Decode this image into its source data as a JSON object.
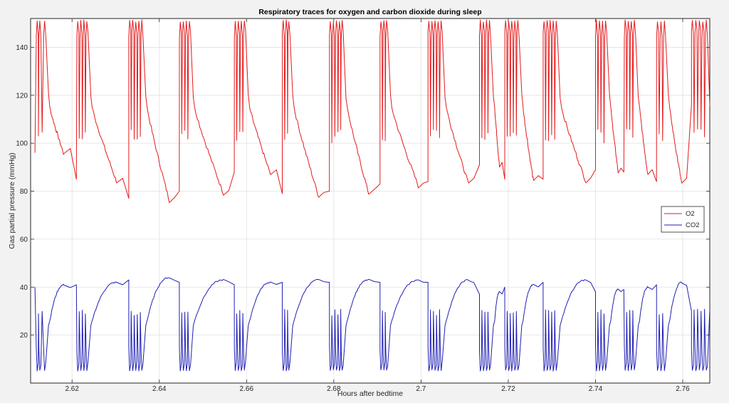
{
  "chart_data": {
    "type": "line",
    "title": "Respiratory traces for oxygen and carbon dioxide during sleep",
    "xlabel": "Hours after bedtime",
    "ylabel": "Gas partial pressure (mmHg)",
    "xlim": [
      2.6105,
      2.7662
    ],
    "ylim": [
      0,
      152
    ],
    "x_ticks": [
      2.62,
      2.64,
      2.66,
      2.68,
      2.7,
      2.72,
      2.74,
      2.76
    ],
    "x_tick_labels": [
      "2.62",
      "2.64",
      "2.66",
      "2.68",
      "2.7",
      "2.72",
      "2.74",
      "2.76"
    ],
    "y_ticks": [
      20,
      40,
      60,
      80,
      100,
      120,
      140
    ],
    "y_tick_labels": [
      "20",
      "40",
      "60",
      "80",
      "100",
      "120",
      "140"
    ],
    "grid": true,
    "legend_position": "right",
    "series": [
      {
        "name": "O2",
        "color": "#e41a1c",
        "breaths": [
          {
            "start": 2.6115,
            "end": 2.6182,
            "peaks": [
              2.612,
              2.6126,
              2.6137
            ],
            "low": 95
          },
          {
            "start": 2.621,
            "end": 2.6302,
            "peaks": [
              2.6213,
              2.622,
              2.6227,
              2.6234
            ],
            "low": 84
          },
          {
            "start": 2.633,
            "end": 2.6423,
            "peaks": [
              2.6332,
              2.6339,
              2.6346,
              2.6353,
              2.636
            ],
            "low": 76
          },
          {
            "start": 2.6446,
            "end": 2.6547,
            "peaks": [
              2.6448,
              2.6455,
              2.6462,
              2.6469
            ],
            "low": 79
          },
          {
            "start": 2.6572,
            "end": 2.6655,
            "peaks": [
              2.6574,
              2.6581,
              2.6588,
              2.6595
            ],
            "low": 87
          },
          {
            "start": 2.6682,
            "end": 2.6765,
            "peaks": [
              2.6684,
              2.6691,
              2.6697
            ],
            "low": 78
          },
          {
            "start": 2.679,
            "end": 2.688,
            "peaks": [
              2.6792,
              2.6799,
              2.6806,
              2.6813,
              2.6819
            ],
            "low": 79
          },
          {
            "start": 2.6906,
            "end": 2.6994,
            "peaks": [
              2.6908,
              2.6915,
              2.6921
            ],
            "low": 82
          },
          {
            "start": 2.7016,
            "end": 2.7109,
            "peaks": [
              2.7018,
              2.7025,
              2.7032,
              2.7039,
              2.7046
            ],
            "low": 83
          },
          {
            "start": 2.7134,
            "end": 2.718,
            "peaks": [
              2.7136,
              2.7143,
              2.715,
              2.7157
            ],
            "low": 90
          },
          {
            "start": 2.7192,
            "end": 2.7258,
            "peaks": [
              2.7194,
              2.7201,
              2.7208,
              2.7215,
              2.7222
            ],
            "low": 84
          },
          {
            "start": 2.728,
            "end": 2.7378,
            "peaks": [
              2.7282,
              2.7289,
              2.7296,
              2.7303,
              2.731
            ],
            "low": 84
          },
          {
            "start": 2.74,
            "end": 2.7452,
            "peaks": [
              2.7402,
              2.7409,
              2.7416,
              2.7423
            ],
            "low": 88
          },
          {
            "start": 2.7465,
            "end": 2.752,
            "peaks": [
              2.7468,
              2.7475,
              2.7482,
              2.7489
            ],
            "low": 87
          },
          {
            "start": 2.754,
            "end": 2.7598,
            "peaks": [
              2.7542,
              2.755,
              2.7558
            ],
            "low": 83
          },
          {
            "start": 2.762,
            "end": 2.7662,
            "peaks": [
              2.7622,
              2.763,
              2.7638,
              2.7646,
              2.7654
            ],
            "low": 115
          }
        ]
      },
      {
        "name": "CO2",
        "color": "#1f1fb4",
        "breaths": [
          {
            "start": 2.6115,
            "end": 2.6182,
            "troughs": [
              2.612,
              2.6126,
              2.6137
            ],
            "high": 41
          },
          {
            "start": 2.621,
            "end": 2.6302,
            "troughs": [
              2.6213,
              2.622,
              2.6227,
              2.6234
            ],
            "high": 42
          },
          {
            "start": 2.633,
            "end": 2.6423,
            "troughs": [
              2.6332,
              2.6339,
              2.6346,
              2.6353,
              2.636
            ],
            "high": 44
          },
          {
            "start": 2.6446,
            "end": 2.6547,
            "troughs": [
              2.6448,
              2.6455,
              2.6462,
              2.6469
            ],
            "high": 43
          },
          {
            "start": 2.6572,
            "end": 2.6655,
            "troughs": [
              2.6574,
              2.6581,
              2.6588,
              2.6595
            ],
            "high": 42
          },
          {
            "start": 2.6682,
            "end": 2.6765,
            "troughs": [
              2.6684,
              2.6691,
              2.6697
            ],
            "high": 43
          },
          {
            "start": 2.679,
            "end": 2.688,
            "troughs": [
              2.6792,
              2.6799,
              2.6806,
              2.6813,
              2.6819
            ],
            "high": 43
          },
          {
            "start": 2.6906,
            "end": 2.6994,
            "troughs": [
              2.6908,
              2.6915,
              2.6921
            ],
            "high": 43
          },
          {
            "start": 2.7016,
            "end": 2.7109,
            "troughs": [
              2.7018,
              2.7025,
              2.7032,
              2.7039,
              2.7046
            ],
            "high": 43
          },
          {
            "start": 2.7134,
            "end": 2.718,
            "troughs": [
              2.7136,
              2.7143,
              2.715,
              2.7157
            ],
            "high": 38
          },
          {
            "start": 2.7192,
            "end": 2.7258,
            "troughs": [
              2.7194,
              2.7201,
              2.7208,
              2.7215,
              2.7222
            ],
            "high": 41
          },
          {
            "start": 2.728,
            "end": 2.7378,
            "troughs": [
              2.7282,
              2.7289,
              2.7296,
              2.7303,
              2.731
            ],
            "high": 43
          },
          {
            "start": 2.74,
            "end": 2.7452,
            "troughs": [
              2.7402,
              2.7409,
              2.7416,
              2.7423
            ],
            "high": 39
          },
          {
            "start": 2.7465,
            "end": 2.752,
            "troughs": [
              2.7468,
              2.7475,
              2.7482,
              2.7489
            ],
            "high": 40
          },
          {
            "start": 2.754,
            "end": 2.7598,
            "troughs": [
              2.7542,
              2.755,
              2.7558
            ],
            "high": 42
          },
          {
            "start": 2.762,
            "end": 2.7662,
            "troughs": [
              2.7622,
              2.763,
              2.7638,
              2.7646,
              2.7654
            ],
            "high": 31
          }
        ]
      }
    ]
  }
}
